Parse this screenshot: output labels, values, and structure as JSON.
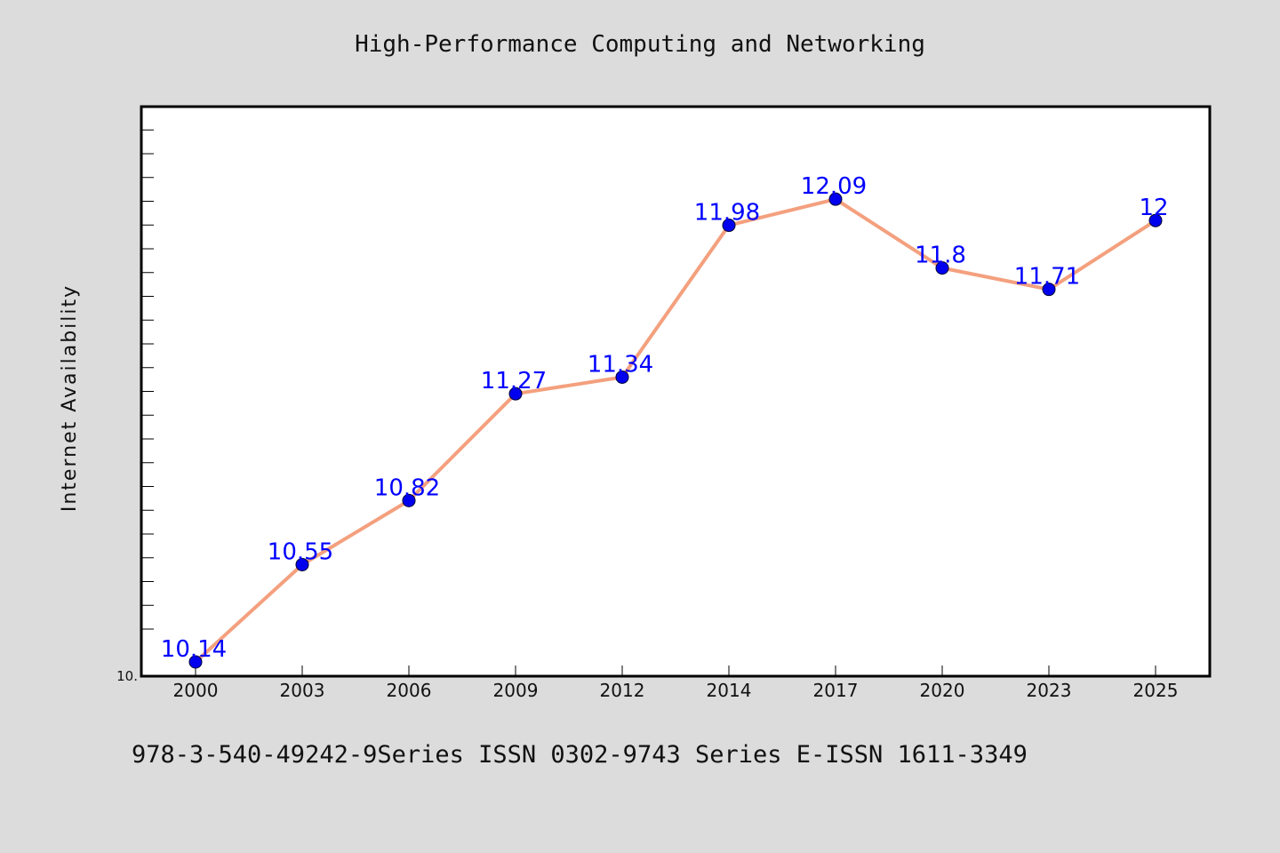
{
  "chart_data": {
    "type": "line",
    "title": "High-Performance Computing and Networking",
    "ylabel": "Internet Availability",
    "xlabel": "",
    "categories": [
      "2000",
      "2003",
      "2006",
      "2009",
      "2012",
      "2014",
      "2017",
      "2020",
      "2023",
      "2025"
    ],
    "values": [
      10.14,
      10.55,
      10.82,
      11.27,
      11.34,
      11.98,
      12.09,
      11.8,
      11.71,
      12
    ],
    "data_labels": [
      "10.14",
      "10.55",
      "10.82",
      "11.27",
      "11.34",
      "11.98",
      "12.09",
      "11.8",
      "11.71",
      "12"
    ],
    "y_tick_labels": [
      "10."
    ],
    "ylim": [
      10.08,
      12.48
    ],
    "grid": false,
    "legend": "none",
    "colors": {
      "line": "#f4a07e",
      "marker": "#0000ee",
      "data_label": "#0000ff",
      "background": "#dcdcdc",
      "plot_area": "#ffffff"
    }
  },
  "footer": {
    "text": "978-3-540-49242-9Series ISSN 0302-9743 Series E-ISSN 1611-3349"
  }
}
